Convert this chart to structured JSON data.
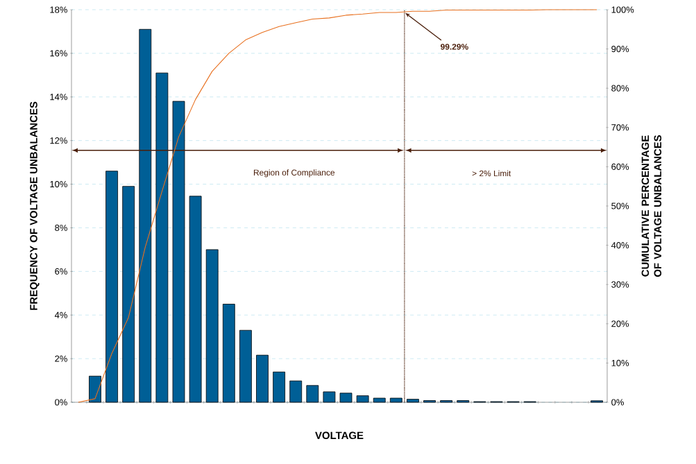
{
  "chart_data": {
    "type": "bar",
    "xlabel": "VOLTAGE",
    "ylabel": "FREQUENCY OF VOLTAGE UNBALANCES",
    "y2label": "CUMULATIVE PERCENTAGE OF VOLTAGE UNBALANCES",
    "categories": [
      null,
      null,
      null,
      null,
      null,
      null,
      null,
      null,
      null,
      null,
      null,
      null,
      null,
      null,
      null,
      null,
      null,
      null,
      null,
      null,
      null,
      null,
      null,
      null,
      null,
      null,
      null,
      null,
      null,
      null,
      null,
      null
    ],
    "series": [
      {
        "color": "#005f96",
        "values": [
          null,
          1.2,
          10.6,
          9.9,
          17.1,
          15.1,
          13.8,
          9.45,
          7.0,
          4.5,
          3.3,
          2.16,
          1.39,
          0.98,
          0.77,
          0.48,
          0.42,
          0.3,
          0.19,
          0.19,
          0.14,
          0.08,
          0.08,
          0.08,
          0.03,
          0.03,
          0.03,
          0.03,
          null,
          null,
          null,
          0.07
        ]
      },
      {
        "type": "line",
        "axis": "y2",
        "color": "#e8701f",
        "values": [
          0,
          0.9,
          12.4,
          21.6,
          39.5,
          53.7,
          67.6,
          77.1,
          84.3,
          88.9,
          92.3,
          94.2,
          95.7,
          96.7,
          97.6,
          97.9,
          98.6,
          98.9,
          99.3,
          99.3,
          99.6,
          99.6,
          99.9,
          99.9,
          99.9,
          99.9,
          99.9,
          99.9,
          100,
          100,
          100,
          100
        ]
      }
    ],
    "ylim": [
      0,
      18
    ],
    "yticks": [
      {
        "value": 0,
        "label": "0%"
      },
      {
        "value": 2,
        "label": "2%"
      },
      {
        "value": 4,
        "label": "4%"
      },
      {
        "value": 6,
        "label": "6%"
      },
      {
        "value": 8,
        "label": "8%"
      },
      {
        "value": 10,
        "label": "10%"
      },
      {
        "value": 12,
        "label": "12%"
      },
      {
        "value": 14,
        "label": "14%"
      },
      {
        "value": 16,
        "label": "16%"
      },
      {
        "value": 18,
        "label": "18%"
      }
    ],
    "y2lim": [
      0,
      100
    ],
    "y2ticks": [
      {
        "value": 0,
        "label": "0%"
      },
      {
        "value": 10,
        "label": "10%"
      },
      {
        "value": 20,
        "label": "20%"
      },
      {
        "value": 30,
        "label": "30%"
      },
      {
        "value": 40,
        "label": "40%"
      },
      {
        "value": 50,
        "label": "50%"
      },
      {
        "value": 60,
        "label": "60%"
      },
      {
        "value": 70,
        "label": "70%"
      },
      {
        "value": 80,
        "label": "80%"
      },
      {
        "value": 90,
        "label": "90%"
      },
      {
        "value": 100,
        "label": "100%"
      }
    ],
    "grid": "y",
    "annotations": [
      "Region of Compliance",
      "> 2% Limit",
      "99.29%"
    ]
  }
}
